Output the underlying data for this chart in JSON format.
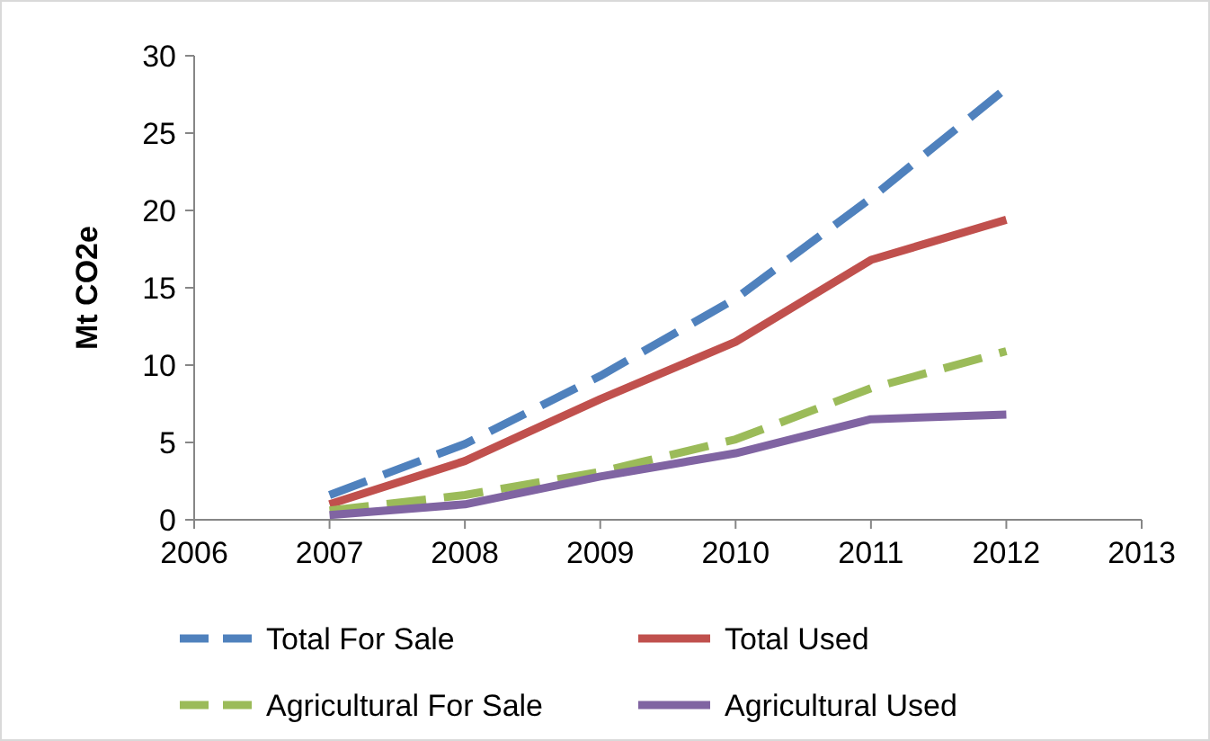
{
  "chart_data": {
    "type": "line",
    "ylabel": "Mt CO2e",
    "x": [
      2007,
      2008,
      2009,
      2010,
      2011,
      2012
    ],
    "xlim": [
      2006,
      2013
    ],
    "xticks": [
      2006,
      2007,
      2008,
      2009,
      2010,
      2011,
      2012,
      2013
    ],
    "ylim": [
      0,
      30
    ],
    "yticks": [
      0,
      5,
      10,
      15,
      20,
      25,
      30
    ],
    "grid": false,
    "legend": "bottom",
    "marker": "none",
    "series": [
      {
        "name": "Total For Sale",
        "color": "#4f81bd",
        "line_style": "dashed",
        "values": [
          1.6,
          4.9,
          9.3,
          14.3,
          20.8,
          27.9
        ]
      },
      {
        "name": "Total Used",
        "color": "#c0504d",
        "line_style": "solid",
        "values": [
          1.0,
          3.8,
          7.8,
          11.5,
          16.8,
          19.4
        ]
      },
      {
        "name": "Agricultural For Sale",
        "color": "#9bbb59",
        "line_style": "dashed",
        "values": [
          0.6,
          1.6,
          3.1,
          5.2,
          8.5,
          10.9
        ]
      },
      {
        "name": "Agricultural Used",
        "color": "#8064a2",
        "line_style": "solid",
        "values": [
          0.3,
          1.0,
          2.8,
          4.3,
          6.5,
          6.8
        ]
      }
    ]
  }
}
